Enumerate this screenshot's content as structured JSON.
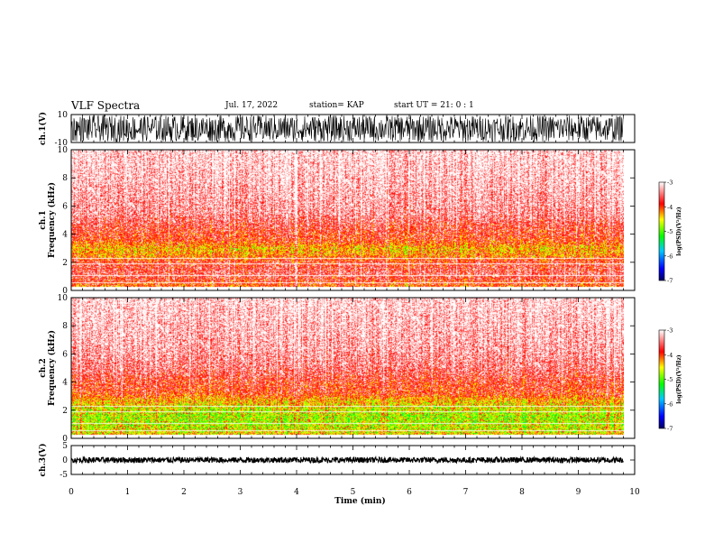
{
  "header": {
    "title": "VLF Spectra",
    "date": "Jul. 17, 2022",
    "station": "station= KAP",
    "start": "start  UT  =  21: 0  : 1"
  },
  "colors": {
    "spectrogram_low": "#ffffff",
    "spectrogram_mid": "#ff0000",
    "spectrogram_high": "#ffff00",
    "spectrogram_peak": "#00ff00",
    "trace": "#000000"
  },
  "chart_data": [
    {
      "type": "line",
      "panel": "ch1-waveform",
      "ylabel": "ch.1(V)",
      "ylim": [
        -10,
        10
      ],
      "y_ticks": [
        "10",
        "-10"
      ],
      "xlim": [
        0,
        10
      ],
      "data_end_min": 9.8,
      "description_values": {
        "typical_range_V": [
          -10,
          10
        ]
      }
    },
    {
      "type": "heatmap",
      "panel": "ch1-spectrogram",
      "ylabel": "ch.1\nFrequency (kHz)",
      "ylabel_line1": "ch.1",
      "ylabel_line2": "Frequency (kHz)",
      "ylim": [
        0,
        10
      ],
      "y_ticks": [
        "0",
        "2",
        "4",
        "6",
        "8",
        "10"
      ],
      "xlim": [
        0,
        10
      ],
      "data_end_min": 9.8,
      "band_profile_log_psd": [
        {
          "f": 0.0,
          "v": -3.2
        },
        {
          "f": 0.3,
          "v": -4.2
        },
        {
          "f": 0.8,
          "v": -3.9
        },
        {
          "f": 1.2,
          "v": -3.7
        },
        {
          "f": 2.0,
          "v": -3.9
        },
        {
          "f": 2.5,
          "v": -4.3
        },
        {
          "f": 3.0,
          "v": -4.5
        },
        {
          "f": 3.6,
          "v": -4.0
        },
        {
          "f": 4.6,
          "v": -3.8
        },
        {
          "f": 5.5,
          "v": -3.5
        },
        {
          "f": 8.0,
          "v": -3.3
        },
        {
          "f": 10.0,
          "v": -3.2
        }
      ],
      "colorbar": {
        "label": "log(PSD)(V²/Hz)",
        "ticks": [
          "-3",
          "-4",
          "-5",
          "-6",
          "-7"
        ],
        "range": [
          -7,
          -3
        ]
      }
    },
    {
      "type": "heatmap",
      "panel": "ch2-spectrogram",
      "ylabel": "ch.2\nFrequency (kHz)",
      "ylabel_line1": "ch.2",
      "ylabel_line2": "Frequency (kHz)",
      "ylim": [
        0,
        10
      ],
      "y_ticks": [
        "0",
        "2",
        "4",
        "6",
        "8",
        "10"
      ],
      "xlim": [
        0,
        10
      ],
      "data_end_min": 9.8,
      "band_profile_log_psd": [
        {
          "f": 0.0,
          "v": -3.2
        },
        {
          "f": 0.3,
          "v": -4.6
        },
        {
          "f": 0.8,
          "v": -4.8
        },
        {
          "f": 1.5,
          "v": -4.9
        },
        {
          "f": 2.2,
          "v": -4.7
        },
        {
          "f": 2.8,
          "v": -4.4
        },
        {
          "f": 3.2,
          "v": -4.0
        },
        {
          "f": 4.0,
          "v": -3.9
        },
        {
          "f": 5.0,
          "v": -3.6
        },
        {
          "f": 6.5,
          "v": -3.4
        },
        {
          "f": 10.0,
          "v": -3.2
        }
      ],
      "colorbar": {
        "label": "log(PSD)(V²/Hz)",
        "ticks": [
          "-3",
          "-4",
          "-5",
          "-6",
          "-7"
        ],
        "range": [
          -7,
          -3
        ]
      }
    },
    {
      "type": "line",
      "panel": "ch3-waveform",
      "ylabel": "ch.3(V)",
      "ylim": [
        -5,
        5
      ],
      "y_ticks": [
        "5",
        "0",
        "-5"
      ],
      "xlim": [
        0,
        10
      ],
      "data_end_min": 9.8,
      "xlabel": "Time (min)",
      "x_ticks": [
        "0",
        "1",
        "2",
        "3",
        "4",
        "5",
        "6",
        "7",
        "8",
        "9",
        "10"
      ],
      "description_values": {
        "typical_range_V": [
          -1,
          1
        ]
      }
    }
  ]
}
